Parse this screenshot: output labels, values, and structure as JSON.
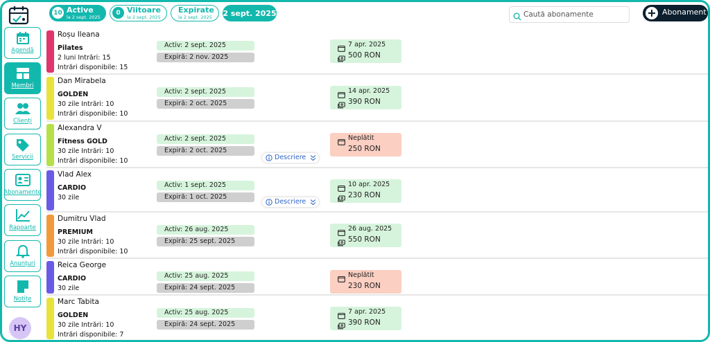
{
  "tabs": [
    {
      "count": "10",
      "label": "Active",
      "sub": "la 2 sept. 2025"
    },
    {
      "count": "0",
      "label": "Viitoare",
      "sub": "la 2 sept. 2025"
    },
    {
      "count": "",
      "label": "Expirate",
      "sub": "la 2 sept. 2025"
    }
  ],
  "current_date": "2 sept. 2025",
  "search": {
    "placeholder": "Caută abonamente"
  },
  "add_button": "Abonament",
  "sidebar": {
    "items": [
      {
        "label": "Agendă",
        "icon": "calendar-icon"
      },
      {
        "label": "Membri",
        "icon": "members-icon"
      },
      {
        "label": "Clienți",
        "icon": "clients-icon"
      },
      {
        "label": "Servicii",
        "icon": "tag-icon"
      },
      {
        "label": "Abonamente",
        "icon": "id-card-icon"
      },
      {
        "label": "Rapoarte",
        "icon": "chart-icon"
      },
      {
        "label": "Anunțuri",
        "icon": "bell-icon"
      },
      {
        "label": "Notițe",
        "icon": "note-icon"
      }
    ],
    "avatar": "HY"
  },
  "colors": {
    "accent": "#13b8ad",
    "active_pill": "#d6f4dc",
    "expire_pill": "#cfcfcf",
    "unpaid": "#fbcfc2"
  },
  "description_label": "Descriere",
  "rows": [
    {
      "name": "Roșu Ileana",
      "plan": "Pilates",
      "detail": "2 luni  Intrări: 15",
      "available": "Intrări disponibile: 15",
      "active": "Activ: 2 sept. 2025",
      "expires": "Expiră: 2 nov. 2025",
      "pay_date": "7 apr. 2025",
      "amount": "500 RON",
      "status": "paid",
      "color": "#e0356d"
    },
    {
      "name": "Dan Mirabela",
      "plan": "GOLDEN",
      "detail": "30 zile  Intrări: 10",
      "available": "Intrări disponibile: 10",
      "active": "Activ: 2 sept. 2025",
      "expires": "Expiră: 2 oct. 2025",
      "pay_date": "14 apr. 2025",
      "amount": "390 RON",
      "status": "paid",
      "color": "#e9e23a"
    },
    {
      "name": "Alexandra V",
      "plan": "Fitness GOLD",
      "detail": "30 zile  Intrări: 10",
      "available": "Intrări disponibile: 10",
      "active": "Activ: 2 sept. 2025",
      "expires": "Expiră: 2 oct. 2025",
      "pay_date": "Neplătit",
      "amount": "250 RON",
      "status": "unpaid",
      "color": "#b6e04a"
    },
    {
      "name": "Vlad Alex",
      "plan": "CARDIO",
      "detail": "30 zile",
      "available": "",
      "active": "Activ: 1 sept. 2025",
      "expires": "Expiră: 1 oct. 2025",
      "pay_date": "10 apr. 2025",
      "amount": "230 RON",
      "status": "paid",
      "color": "#6a5be6"
    },
    {
      "name": "Dumitru Vlad",
      "plan": "PREMIUM",
      "detail": "30 zile  Intrări: 10",
      "available": "Intrări disponibile: 10",
      "active": "Activ: 26 aug. 2025",
      "expires": "Expiră: 25 sept. 2025",
      "pay_date": "26 aug. 2025",
      "amount": "550 RON",
      "status": "paid",
      "color": "#f29a3b"
    },
    {
      "name": "Reica George",
      "plan": "CARDIO",
      "detail": "30 zile",
      "available": "",
      "active": "Activ: 25 aug. 2025",
      "expires": "Expiră: 24 sept. 2025",
      "pay_date": "Neplătit",
      "amount": "230 RON",
      "status": "unpaid",
      "color": "#6a5be6"
    },
    {
      "name": "Marc Tabita",
      "plan": "GOLDEN",
      "detail": "30 zile  Intrări: 10",
      "available": "Intrări disponibile: 7",
      "active": "Activ: 25 aug. 2025",
      "expires": "Expiră: 24 sept. 2025",
      "pay_date": "7 apr. 2025",
      "amount": "390 RON",
      "status": "paid",
      "color": "#e9e23a"
    }
  ]
}
